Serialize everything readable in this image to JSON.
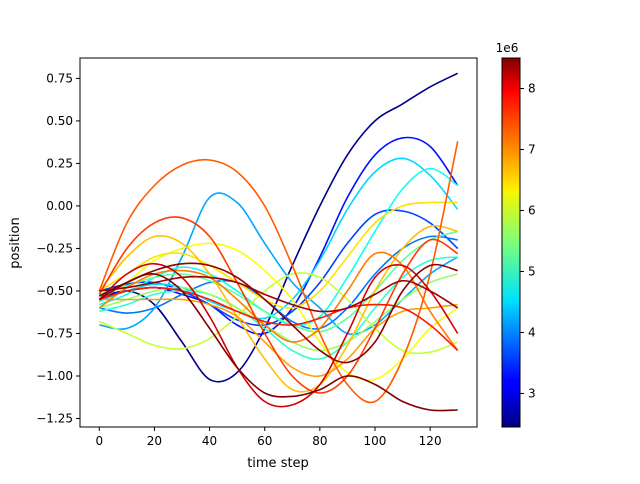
{
  "chart_data": {
    "type": "line",
    "title": "",
    "xlabel": "time step",
    "ylabel": "position",
    "xlim": [
      -7,
      137
    ],
    "ylim": [
      -1.3,
      0.87
    ],
    "xticks": [
      0,
      20,
      40,
      60,
      80,
      100,
      120
    ],
    "yticks": [
      -1.25,
      -1.0,
      -0.75,
      -0.5,
      -0.25,
      0.0,
      0.25,
      0.5,
      0.75
    ],
    "ytick_labels": [
      "−1.25",
      "−1.00",
      "−0.75",
      "−0.50",
      "−0.25",
      "0.00",
      "0.25",
      "0.50",
      "0.75"
    ],
    "grid": false,
    "legend": "none",
    "colorbar": {
      "colormap": "jet",
      "min": 2.45,
      "max": 8.5,
      "ticks": [
        3,
        4,
        5,
        6,
        7,
        8
      ],
      "tick_labels": [
        "3",
        "4",
        "5",
        "6",
        "7",
        "8"
      ],
      "multiplier_label": "1e6"
    },
    "series": [
      {
        "color_value": 2.5,
        "x": [
          0,
          10,
          20,
          30,
          40,
          50,
          60,
          70,
          80,
          90,
          100,
          110,
          120,
          130
        ],
        "y": [
          -0.55,
          -0.5,
          -0.58,
          -0.8,
          -1.02,
          -0.98,
          -0.72,
          -0.35,
          0.0,
          0.3,
          0.5,
          0.6,
          0.7,
          0.78
        ]
      },
      {
        "color_value": 3.3,
        "x": [
          0,
          10,
          20,
          30,
          40,
          50,
          60,
          70,
          80,
          90,
          100,
          110,
          120,
          130
        ],
        "y": [
          -0.52,
          -0.5,
          -0.48,
          -0.52,
          -0.58,
          -0.7,
          -0.75,
          -0.6,
          -0.3,
          0.05,
          0.3,
          0.4,
          0.35,
          0.12
        ]
      },
      {
        "color_value": 3.6,
        "x": [
          0,
          10,
          20,
          30,
          40,
          50,
          60,
          70,
          80,
          90,
          100,
          110,
          120,
          130
        ],
        "y": [
          -0.5,
          -0.46,
          -0.45,
          -0.5,
          -0.58,
          -0.67,
          -0.7,
          -0.62,
          -0.45,
          -0.22,
          -0.05,
          -0.03,
          -0.1,
          -0.25
        ]
      },
      {
        "color_value": 3.9,
        "x": [
          0,
          10,
          20,
          30,
          40,
          50,
          60,
          70,
          80,
          90,
          100,
          110,
          120,
          130
        ],
        "y": [
          -0.6,
          -0.63,
          -0.6,
          -0.52,
          -0.45,
          -0.45,
          -0.55,
          -0.68,
          -0.72,
          -0.6,
          -0.4,
          -0.25,
          -0.18,
          -0.2
        ]
      },
      {
        "color_value": 4.2,
        "x": [
          0,
          10,
          20,
          30,
          40,
          50,
          60,
          70,
          80,
          90,
          100,
          110,
          120,
          130
        ],
        "y": [
          -0.7,
          -0.72,
          -0.6,
          -0.3,
          0.05,
          0.02,
          -0.22,
          -0.45,
          -0.6,
          -0.75,
          -0.7,
          -0.55,
          -0.4,
          -0.3
        ]
      },
      {
        "color_value": 4.5,
        "x": [
          0,
          10,
          20,
          30,
          40,
          50,
          60,
          70,
          80,
          90,
          100,
          110,
          120,
          130
        ],
        "y": [
          -0.56,
          -0.5,
          -0.46,
          -0.48,
          -0.56,
          -0.62,
          -0.66,
          -0.55,
          -0.32,
          -0.02,
          0.2,
          0.28,
          0.18,
          -0.02
        ]
      },
      {
        "color_value": 4.8,
        "x": [
          0,
          10,
          20,
          30,
          40,
          50,
          60,
          70,
          80,
          90,
          100,
          110,
          120,
          130
        ],
        "y": [
          -0.58,
          -0.52,
          -0.42,
          -0.36,
          -0.4,
          -0.5,
          -0.62,
          -0.7,
          -0.65,
          -0.42,
          -0.15,
          0.1,
          0.22,
          0.12
        ]
      },
      {
        "color_value": 5.0,
        "x": [
          0,
          10,
          20,
          30,
          40,
          50,
          60,
          70,
          80,
          90,
          100,
          110,
          120,
          130
        ],
        "y": [
          -0.62,
          -0.58,
          -0.52,
          -0.5,
          -0.52,
          -0.6,
          -0.72,
          -0.85,
          -0.9,
          -0.8,
          -0.6,
          -0.42,
          -0.32,
          -0.3
        ]
      },
      {
        "color_value": 5.3,
        "x": [
          0,
          10,
          20,
          30,
          40,
          50,
          60,
          70,
          80,
          90,
          100,
          110,
          120,
          130
        ],
        "y": [
          -0.52,
          -0.47,
          -0.42,
          -0.4,
          -0.44,
          -0.52,
          -0.62,
          -0.7,
          -0.74,
          -0.66,
          -0.5,
          -0.32,
          -0.2,
          -0.15
        ]
      },
      {
        "color_value": 5.6,
        "x": [
          0,
          10,
          20,
          30,
          40,
          50,
          60,
          70,
          80,
          90,
          100,
          110,
          120,
          130
        ],
        "y": [
          -0.6,
          -0.55,
          -0.5,
          -0.48,
          -0.52,
          -0.6,
          -0.7,
          -0.8,
          -0.85,
          -0.8,
          -0.68,
          -0.55,
          -0.45,
          -0.4
        ]
      },
      {
        "color_value": 5.9,
        "x": [
          0,
          10,
          20,
          30,
          40,
          50,
          60,
          70,
          80,
          90,
          100,
          110,
          120,
          130
        ],
        "y": [
          -0.68,
          -0.75,
          -0.82,
          -0.84,
          -0.78,
          -0.65,
          -0.5,
          -0.4,
          -0.42,
          -0.55,
          -0.72,
          -0.85,
          -0.86,
          -0.8
        ]
      },
      {
        "color_value": 6.2,
        "x": [
          0,
          10,
          20,
          30,
          40,
          50,
          60,
          70,
          80,
          90,
          100,
          110,
          120,
          130
        ],
        "y": [
          -0.55,
          -0.45,
          -0.32,
          -0.25,
          -0.22,
          -0.26,
          -0.38,
          -0.55,
          -0.8,
          -0.98,
          -1.02,
          -0.9,
          -0.72,
          -0.6
        ]
      },
      {
        "color_value": 6.4,
        "x": [
          0,
          10,
          20,
          30,
          40,
          50,
          60,
          70,
          80,
          90,
          100,
          110,
          120,
          130
        ],
        "y": [
          -0.5,
          -0.4,
          -0.3,
          -0.28,
          -0.35,
          -0.45,
          -0.55,
          -0.6,
          -0.5,
          -0.3,
          -0.1,
          0.0,
          0.02,
          0.02
        ]
      },
      {
        "color_value": 6.6,
        "x": [
          0,
          10,
          20,
          30,
          40,
          50,
          60,
          70,
          80,
          90,
          100,
          110,
          120,
          130
        ],
        "y": [
          -0.5,
          -0.3,
          -0.18,
          -0.22,
          -0.4,
          -0.65,
          -0.9,
          -1.08,
          -1.05,
          -0.82,
          -0.5,
          -0.25,
          -0.12,
          -0.15
        ]
      },
      {
        "color_value": 6.8,
        "x": [
          0,
          10,
          20,
          30,
          40,
          50,
          60,
          70,
          80,
          90,
          100,
          110,
          120,
          130
        ],
        "y": [
          -0.55,
          -0.55,
          -0.55,
          -0.55,
          -0.58,
          -0.65,
          -0.8,
          -0.95,
          -1.0,
          -0.9,
          -0.72,
          -0.62,
          -0.6,
          -0.58
        ]
      },
      {
        "color_value": 7.0,
        "x": [
          0,
          10,
          20,
          30,
          40,
          50,
          60,
          70,
          80,
          90,
          100,
          110,
          120,
          130
        ],
        "y": [
          -0.6,
          -0.48,
          -0.4,
          -0.38,
          -0.42,
          -0.55,
          -0.7,
          -0.8,
          -0.72,
          -0.5,
          -0.28,
          -0.35,
          -0.62,
          -0.85
        ]
      },
      {
        "color_value": 7.2,
        "x": [
          0,
          10,
          20,
          30,
          40,
          50,
          60,
          70,
          80,
          90,
          100,
          110,
          120,
          130
        ],
        "y": [
          -0.5,
          -0.1,
          0.12,
          0.24,
          0.27,
          0.2,
          0.0,
          -0.35,
          -0.75,
          -1.05,
          -1.15,
          -0.9,
          -0.4,
          0.38
        ]
      },
      {
        "color_value": 7.4,
        "x": [
          0,
          10,
          20,
          30,
          40,
          50,
          60,
          70,
          80,
          90,
          100,
          110,
          120,
          130
        ],
        "y": [
          -0.52,
          -0.25,
          -0.1,
          -0.07,
          -0.18,
          -0.45,
          -0.75,
          -1.0,
          -1.1,
          -1.0,
          -0.72,
          -0.4,
          -0.2,
          -0.28
        ]
      },
      {
        "color_value": 7.6,
        "x": [
          0,
          10,
          20,
          30,
          40,
          50,
          60,
          70,
          80,
          90,
          100,
          110,
          120,
          130
        ],
        "y": [
          -0.55,
          -0.5,
          -0.48,
          -0.5,
          -0.55,
          -0.62,
          -0.68,
          -0.7,
          -0.66,
          -0.6,
          -0.58,
          -0.6,
          -0.7,
          -0.85
        ]
      },
      {
        "color_value": 8.0,
        "x": [
          0,
          10,
          20,
          30,
          40,
          50,
          60,
          70,
          80,
          90,
          100,
          110,
          120,
          130
        ],
        "y": [
          -0.55,
          -0.4,
          -0.34,
          -0.42,
          -0.65,
          -0.95,
          -1.15,
          -1.17,
          -1.05,
          -0.75,
          -0.42,
          -0.35,
          -0.5,
          -0.75
        ]
      },
      {
        "color_value": 8.3,
        "x": [
          0,
          10,
          20,
          30,
          40,
          50,
          60,
          70,
          80,
          90,
          100,
          110,
          120,
          130
        ],
        "y": [
          -0.5,
          -0.48,
          -0.45,
          -0.42,
          -0.42,
          -0.45,
          -0.52,
          -0.58,
          -0.62,
          -0.6,
          -0.52,
          -0.44,
          -0.5,
          -0.6
        ]
      },
      {
        "color_value": 8.4,
        "x": [
          0,
          10,
          20,
          30,
          40,
          50,
          60,
          70,
          80,
          90,
          100,
          110,
          120,
          130
        ],
        "y": [
          -0.55,
          -0.45,
          -0.38,
          -0.34,
          -0.35,
          -0.42,
          -0.55,
          -0.7,
          -0.85,
          -0.92,
          -0.8,
          -0.5,
          -0.35,
          -0.38
        ]
      },
      {
        "color_value": 8.5,
        "x": [
          0,
          10,
          20,
          30,
          40,
          50,
          60,
          70,
          80,
          90,
          100,
          110,
          120,
          130
        ],
        "y": [
          -0.53,
          -0.45,
          -0.4,
          -0.5,
          -0.72,
          -0.95,
          -1.1,
          -1.12,
          -1.08,
          -1.0,
          -1.05,
          -1.15,
          -1.2,
          -1.2
        ]
      }
    ]
  }
}
